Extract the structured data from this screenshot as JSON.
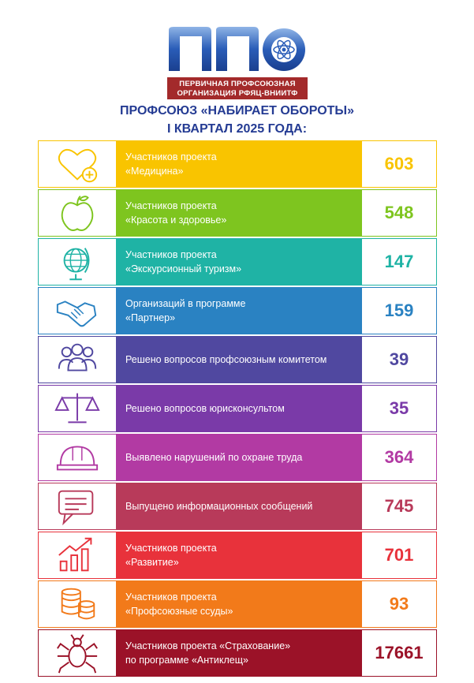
{
  "logo": {
    "mark": "ППО",
    "line1": "ПЕРВИЧНАЯ ПРОФСОЮЗНАЯ",
    "line2": "ОРГАНИЗАЦИЯ РФЯЦ-ВНИИТФ"
  },
  "title": {
    "line1": "ПРОФСОЮЗ «НАБИРАЕТ ОБОРОТЫ»",
    "line2": "I КВАРТАЛ 2025 ГОДА:"
  },
  "rows": [
    {
      "icon": "heart-plus-icon",
      "color": "#f9c400",
      "line1": "Участников проекта",
      "line2": "«Медицина»",
      "value": "603"
    },
    {
      "icon": "apple-icon",
      "color": "#7ec51f",
      "line1": "Участников проекта",
      "line2": "«Красота и здоровье»",
      "value": "548"
    },
    {
      "icon": "globe-icon",
      "color": "#1fb3a5",
      "line1": "Участников проекта",
      "line2": "«Экскурсионный туризм»",
      "value": "147"
    },
    {
      "icon": "handshake-icon",
      "color": "#2a82c2",
      "line1": "Организаций в программе",
      "line2": "«Партнер»",
      "value": "159"
    },
    {
      "icon": "people-icon",
      "color": "#5048a0",
      "line1": "Решено вопросов профсоюзным комитетом",
      "line2": "",
      "value": "39"
    },
    {
      "icon": "scales-icon",
      "color": "#7a3aa8",
      "line1": "Решено вопросов юрисконсультом",
      "line2": "",
      "value": "35"
    },
    {
      "icon": "hard-hat-icon",
      "color": "#b23aa3",
      "line1": "Выявлено нарушений по охране труда",
      "line2": "",
      "value": "364"
    },
    {
      "icon": "chat-icon",
      "color": "#b83a5a",
      "line1": "Выпущено информационных сообщений",
      "line2": "",
      "value": "745"
    },
    {
      "icon": "growth-chart-icon",
      "color": "#e8323b",
      "line1": "Участников проекта",
      "line2": "«Развитие»",
      "value": "701"
    },
    {
      "icon": "coins-icon",
      "color": "#f27a1a",
      "line1": "Участников проекта",
      "line2": "«Профсоюзные ссуды»",
      "value": "93"
    },
    {
      "icon": "tick-icon",
      "color": "#9b1228",
      "line1": "Участников проекта «Страхование»",
      "line2": "по программе «Антиклещ»",
      "value": "17661"
    }
  ]
}
